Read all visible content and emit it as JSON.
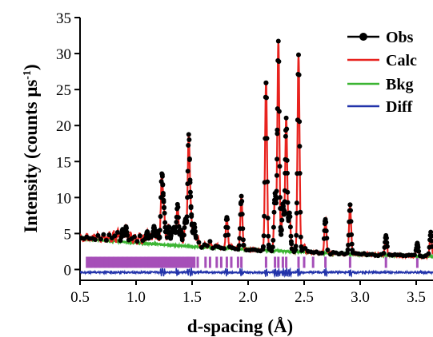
{
  "chart_data": {
    "type": "line",
    "xlabel": "d-spacing (Å)",
    "ylabel_main": "Intensity (counts μs",
    "ylabel_sup": "-1",
    "ylabel_close": ")",
    "xlim": [
      0.5,
      3.65
    ],
    "ylim": [
      -1.5,
      35
    ],
    "xticks": [
      0.5,
      1.0,
      1.5,
      2.0,
      2.5,
      3.0,
      3.5
    ],
    "xtick_labels": [
      "0.5",
      "1.0",
      "1.5",
      "2.0",
      "2.5",
      "3.0",
      "3.5"
    ],
    "yticks": [
      0,
      5,
      10,
      15,
      20,
      25,
      30,
      35
    ],
    "ytick_labels": [
      "0",
      "5",
      "10",
      "15",
      "20",
      "25",
      "30",
      "35"
    ],
    "legend": {
      "position": "top-right",
      "entries": [
        {
          "label": "Obs",
          "color": "#000000",
          "marker": "circle"
        },
        {
          "label": "Calc",
          "color": "#e8221e",
          "marker": "none"
        },
        {
          "label": "Bkg",
          "color": "#3cb533",
          "marker": "none"
        },
        {
          "label": "Diff",
          "color": "#2233aa",
          "marker": "none"
        }
      ]
    },
    "tick_marks_color": "#a64fb8",
    "tick_marks_y": 1.0,
    "diff_offset": -0.4,
    "background": {
      "x": [
        0.5,
        1.0,
        1.5,
        2.0,
        2.5,
        3.0,
        3.65
      ],
      "y": [
        4.3,
        3.7,
        3.2,
        2.8,
        2.4,
        2.1,
        1.8
      ]
    },
    "peaks": [
      {
        "x": 0.56,
        "h": 0.4
      },
      {
        "x": 0.62,
        "h": 0.5
      },
      {
        "x": 0.66,
        "h": 0.6
      },
      {
        "x": 0.71,
        "h": 0.7
      },
      {
        "x": 0.76,
        "h": 0.9
      },
      {
        "x": 0.8,
        "h": 1.1
      },
      {
        "x": 0.84,
        "h": 1.4
      },
      {
        "x": 0.88,
        "h": 1.6
      },
      {
        "x": 0.91,
        "h": 2.1
      },
      {
        "x": 0.95,
        "h": 1.2
      },
      {
        "x": 0.99,
        "h": 0.8
      },
      {
        "x": 1.03,
        "h": 1.1
      },
      {
        "x": 1.07,
        "h": 0.9
      },
      {
        "x": 1.1,
        "h": 1.6
      },
      {
        "x": 1.13,
        "h": 1.2
      },
      {
        "x": 1.16,
        "h": 2.5
      },
      {
        "x": 1.19,
        "h": 1.7
      },
      {
        "x": 1.23,
        "h": 9.6
      },
      {
        "x": 1.25,
        "h": 4.5
      },
      {
        "x": 1.29,
        "h": 2.6
      },
      {
        "x": 1.32,
        "h": 1.7
      },
      {
        "x": 1.34,
        "h": 2.3
      },
      {
        "x": 1.37,
        "h": 5.7
      },
      {
        "x": 1.4,
        "h": 2.1
      },
      {
        "x": 1.44,
        "h": 3.7
      },
      {
        "x": 1.47,
        "h": 15.3
      },
      {
        "x": 1.49,
        "h": 4.2
      },
      {
        "x": 1.52,
        "h": 3.1
      },
      {
        "x": 1.55,
        "h": 1.3
      },
      {
        "x": 1.62,
        "h": 0.6
      },
      {
        "x": 1.66,
        "h": 0.8
      },
      {
        "x": 1.72,
        "h": 0.5
      },
      {
        "x": 1.81,
        "h": 4.3
      },
      {
        "x": 1.85,
        "h": 0.4
      },
      {
        "x": 1.94,
        "h": 7.3
      },
      {
        "x": 2.16,
        "h": 23.4
      },
      {
        "x": 2.24,
        "h": 7.8
      },
      {
        "x": 2.27,
        "h": 29.1
      },
      {
        "x": 2.31,
        "h": 6.5
      },
      {
        "x": 2.34,
        "h": 18.6
      },
      {
        "x": 2.37,
        "h": 5.2
      },
      {
        "x": 2.45,
        "h": 27.3
      },
      {
        "x": 2.5,
        "h": 1.0
      },
      {
        "x": 2.69,
        "h": 4.8
      },
      {
        "x": 2.91,
        "h": 6.8
      },
      {
        "x": 3.23,
        "h": 2.7
      },
      {
        "x": 3.51,
        "h": 1.7
      },
      {
        "x": 3.63,
        "h": 3.3
      }
    ],
    "peak_width": 0.009,
    "reflections": [
      0.58,
      0.62,
      0.66,
      0.7,
      0.74,
      0.78,
      0.82,
      0.86,
      0.9,
      0.94,
      0.98,
      1.02,
      1.06,
      1.1,
      1.13,
      1.16,
      1.19,
      1.23,
      1.25,
      1.29,
      1.32,
      1.34,
      1.37,
      1.4,
      1.44,
      1.47,
      1.49,
      1.52,
      1.55,
      1.62,
      1.66,
      1.72,
      1.76,
      1.81,
      1.85,
      1.91,
      1.94,
      2.16,
      2.24,
      2.27,
      2.31,
      2.34,
      2.45,
      2.5,
      2.58,
      2.69,
      2.91,
      3.23,
      3.51
    ]
  }
}
